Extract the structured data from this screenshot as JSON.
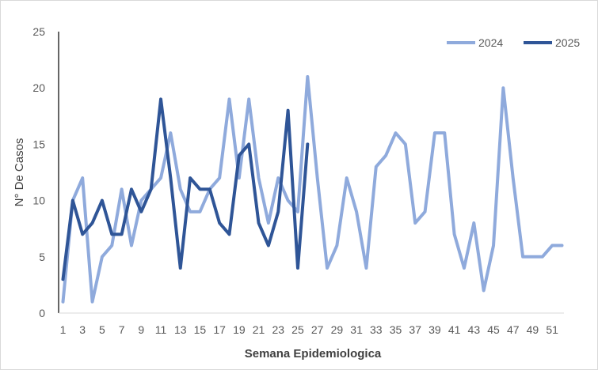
{
  "chart_data": {
    "type": "line",
    "title": "",
    "xlabel": "Semana Epidemiologica",
    "ylabel": "N° De Casos",
    "xlim": [
      1,
      52
    ],
    "ylim": [
      0,
      25
    ],
    "y_ticks": [
      0,
      5,
      10,
      15,
      20,
      25
    ],
    "x_ticks": [
      1,
      3,
      5,
      7,
      9,
      11,
      13,
      15,
      17,
      19,
      21,
      23,
      25,
      27,
      29,
      31,
      33,
      35,
      37,
      39,
      41,
      43,
      45,
      47,
      49,
      51
    ],
    "grid": false,
    "legend_position": "top-right",
    "series": [
      {
        "name": "2024",
        "color": "#8faadc",
        "x": [
          1,
          2,
          3,
          4,
          5,
          6,
          7,
          8,
          9,
          10,
          11,
          12,
          13,
          14,
          15,
          16,
          17,
          18,
          19,
          20,
          21,
          22,
          23,
          24,
          25,
          26,
          27,
          28,
          29,
          30,
          31,
          32,
          33,
          34,
          35,
          36,
          37,
          38,
          39,
          40,
          41,
          42,
          43,
          44,
          45,
          46,
          47,
          48,
          49,
          50,
          51,
          52
        ],
        "values": [
          1,
          10,
          12,
          1,
          5,
          6,
          11,
          6,
          10,
          11,
          12,
          16,
          11,
          9,
          9,
          11,
          12,
          19,
          12,
          19,
          12,
          8,
          12,
          10,
          9,
          21,
          12,
          4,
          6,
          12,
          9,
          4,
          13,
          14,
          16,
          15,
          8,
          9,
          16,
          16,
          7,
          4,
          8,
          2,
          6,
          20,
          12,
          5,
          5,
          5,
          6,
          6
        ]
      },
      {
        "name": "2025",
        "color": "#2f5597",
        "x": [
          1,
          2,
          3,
          4,
          5,
          6,
          7,
          8,
          9,
          10,
          11,
          12,
          13,
          14,
          15,
          16,
          17,
          18,
          19,
          20,
          21,
          22,
          23,
          24,
          25,
          26
        ],
        "values": [
          3,
          10,
          7,
          8,
          10,
          7,
          7,
          11,
          9,
          11,
          19,
          12,
          4,
          12,
          11,
          11,
          8,
          7,
          14,
          15,
          8,
          6,
          9,
          18,
          4,
          15
        ]
      }
    ]
  }
}
